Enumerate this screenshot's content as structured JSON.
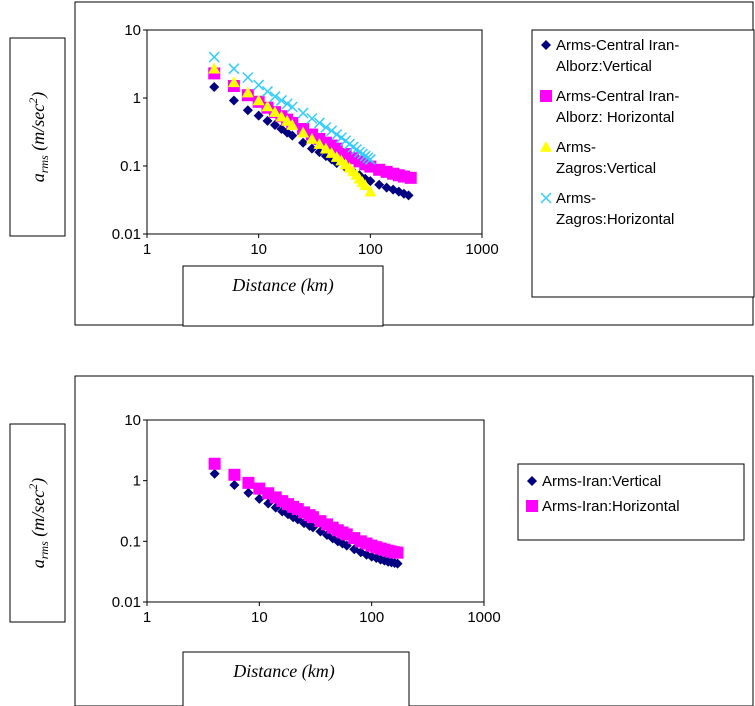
{
  "chart_data": [
    {
      "type": "scatter",
      "xlabel": "Distance (km)",
      "ylabel": {
        "base": "a",
        "sub": "rms",
        "rest": " (m/sec",
        "sup": "2",
        "close": ")"
      },
      "xscale": "log",
      "yscale": "log",
      "xlim": [
        1,
        1000
      ],
      "ylim": [
        0.01,
        10
      ],
      "xticks": [
        "1",
        "10",
        "100",
        "1000"
      ],
      "yticks": [
        "10",
        "1",
        "0.1",
        "0.01"
      ],
      "legend_position": "right",
      "series": [
        {
          "name_lines": [
            "Arms-Central Iran-",
            "Alborz:Vertical"
          ],
          "color": "#000080",
          "marker": "diamond",
          "x": [
            4,
            6,
            8,
            10,
            12,
            14,
            16,
            18,
            20,
            25,
            30,
            35,
            40,
            45,
            50,
            60,
            70,
            80,
            90,
            100,
            120,
            140,
            160,
            180,
            200,
            220
          ],
          "y": [
            1.45,
            0.92,
            0.66,
            0.55,
            0.46,
            0.4,
            0.35,
            0.31,
            0.28,
            0.22,
            0.18,
            0.16,
            0.14,
            0.125,
            0.11,
            0.095,
            0.083,
            0.073,
            0.065,
            0.06,
            0.053,
            0.048,
            0.045,
            0.042,
            0.039,
            0.037
          ]
        },
        {
          "name_lines": [
            "Arms-Central Iran-",
            "Alborz: Horizontal"
          ],
          "color": "#ff00ff",
          "marker": "square",
          "x": [
            4,
            6,
            8,
            10,
            12,
            14,
            16,
            18,
            20,
            25,
            30,
            35,
            40,
            45,
            50,
            60,
            70,
            80,
            90,
            100,
            120,
            140,
            160,
            180,
            200,
            230
          ],
          "y": [
            2.3,
            1.5,
            1.1,
            0.88,
            0.72,
            0.62,
            0.54,
            0.48,
            0.43,
            0.35,
            0.29,
            0.25,
            0.22,
            0.2,
            0.18,
            0.15,
            0.13,
            0.117,
            0.106,
            0.098,
            0.088,
            0.082,
            0.077,
            0.073,
            0.07,
            0.067
          ]
        },
        {
          "name_lines": [
            "Arms-",
            "Zagros:Vertical"
          ],
          "color": "#ffff00",
          "marker": "triangle",
          "x": [
            4,
            6,
            8,
            10,
            12,
            14,
            16,
            18,
            20,
            25,
            30,
            35,
            40,
            45,
            50,
            55,
            60,
            65,
            70,
            75,
            80,
            85,
            90,
            100
          ],
          "y": [
            2.7,
            1.7,
            1.2,
            0.92,
            0.75,
            0.62,
            0.53,
            0.46,
            0.4,
            0.31,
            0.25,
            0.21,
            0.18,
            0.155,
            0.135,
            0.12,
            0.105,
            0.094,
            0.083,
            0.074,
            0.065,
            0.058,
            0.052,
            0.042
          ]
        },
        {
          "name_lines": [
            "Arms-",
            "Zagros:Horizontal"
          ],
          "color": "#33ccff",
          "marker": "x",
          "x": [
            4,
            6,
            8,
            10,
            12,
            14,
            16,
            18,
            20,
            25,
            30,
            35,
            40,
            45,
            50,
            55,
            60,
            65,
            70,
            75,
            80,
            85,
            90,
            95,
            100
          ],
          "y": [
            4.0,
            2.7,
            2.0,
            1.55,
            1.25,
            1.05,
            0.92,
            0.82,
            0.74,
            0.6,
            0.5,
            0.43,
            0.37,
            0.33,
            0.29,
            0.26,
            0.235,
            0.21,
            0.19,
            0.175,
            0.16,
            0.15,
            0.14,
            0.132,
            0.125
          ]
        }
      ]
    },
    {
      "type": "scatter",
      "xlabel": "Distance (km)",
      "ylabel": {
        "base": "a",
        "sub": "rms",
        "rest": " (m/sec",
        "sup": "2",
        "close": ")"
      },
      "xscale": "log",
      "yscale": "log",
      "xlim": [
        1,
        1000
      ],
      "ylim": [
        0.01,
        10
      ],
      "xticks": [
        "1",
        "10",
        "100",
        "1000"
      ],
      "yticks": [
        "10",
        "1",
        "0.1",
        "0.01"
      ],
      "legend_position": "right",
      "series": [
        {
          "name_lines": [
            "Arms-Iran:Vertical"
          ],
          "color": "#000080",
          "marker": "diamond",
          "x": [
            4,
            6,
            8,
            10,
            12,
            14,
            16,
            18,
            20,
            22,
            25,
            28,
            30,
            35,
            40,
            45,
            50,
            55,
            60,
            70,
            80,
            90,
            100,
            110,
            120,
            130,
            140,
            150,
            160,
            170
          ],
          "y": [
            1.3,
            0.85,
            0.63,
            0.5,
            0.42,
            0.36,
            0.31,
            0.28,
            0.25,
            0.23,
            0.2,
            0.18,
            0.17,
            0.145,
            0.127,
            0.112,
            0.1,
            0.092,
            0.085,
            0.074,
            0.066,
            0.06,
            0.056,
            0.053,
            0.05,
            0.048,
            0.046,
            0.045,
            0.044,
            0.043
          ]
        },
        {
          "name_lines": [
            "Arms-Iran:Horizontal"
          ],
          "color": "#ff00ff",
          "marker": "square",
          "x": [
            4,
            6,
            8,
            10,
            12,
            14,
            16,
            18,
            20,
            22,
            25,
            28,
            30,
            35,
            40,
            45,
            50,
            55,
            60,
            70,
            80,
            90,
            100,
            110,
            120,
            130,
            140,
            150,
            160,
            170
          ],
          "y": [
            1.9,
            1.25,
            0.92,
            0.74,
            0.62,
            0.53,
            0.46,
            0.41,
            0.37,
            0.34,
            0.3,
            0.27,
            0.25,
            0.215,
            0.19,
            0.168,
            0.152,
            0.14,
            0.13,
            0.113,
            0.1,
            0.092,
            0.085,
            0.08,
            0.076,
            0.073,
            0.07,
            0.068,
            0.066,
            0.065
          ]
        }
      ]
    }
  ]
}
